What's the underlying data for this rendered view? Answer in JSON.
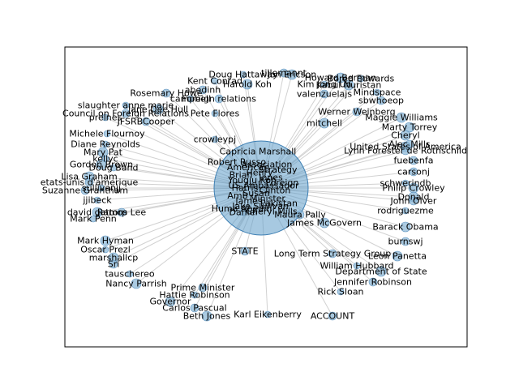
{
  "figure": {
    "hub": {
      "label": "Capricia Marshall"
    },
    "hub_stack_labels": [
      "Robert Russo",
      "Association",
      "American",
      "Strategy",
      "Henry",
      "Brian",
      "Jones",
      "Yougju Koh",
      "Foreign",
      "US Ambassador",
      "Harris",
      "Clinton",
      "Susan",
      "Amb",
      "Minister",
      "James",
      "Pakistan",
      "Jake Sullivan",
      "Huma Abedin",
      "Cheryl Mills"
    ],
    "nodes": [
      "Doug Hattaway",
      "tillemannt",
      "Howard Berman",
      "Kent Conrad",
      "abedinh",
      "Harold Koh",
      "campbell",
      "Foreign relations",
      "Jane Dee Hull",
      "Pete Flores",
      "Rosemary Howe",
      "Jon Ericson",
      "Bored Edwards",
      "valenzuelajs",
      "Kabul Nuristan",
      "Kim Jong Un",
      "Werner Weinberg",
      "mitchell",
      "Mindspace",
      "sbwhoeop",
      "Maggie Williams",
      "slaughter anne marie",
      "Council on Foreign Relations",
      "Marty Torrey",
      "preines",
      "JFSRBCooper",
      "Cheryl",
      "Michele Flournoy",
      "Alec Mills",
      "United States of America",
      "Diane Reynolds",
      "Lynn Forester de Rothschild",
      "Mary Pat",
      "kellyc",
      "fuebenfa",
      "Gordon Brown",
      "Doug Band",
      "carsonj",
      "Lisa Graham",
      "schwerindb",
      "etats-unis d'amerique",
      "Philip Crowley",
      "sullivanjj",
      "Suzanne Grantham",
      "Donald",
      "jjibeck",
      "John Olver",
      "david gattorp",
      "rodriguezme",
      "Ramos Lee",
      "Barack Obama",
      "Mark Penn",
      "burnswj",
      "Mark Hyman",
      "Oscar Prezl",
      "Long Term Strategy Group",
      "marshallcp",
      "William Hubbard",
      "Sri",
      "Department of State",
      "tauschereo",
      "Jennifer Robinson",
      "Nancy Parrish",
      "Rick Sloan",
      "Prime Minister",
      "Governor",
      "Hattie Robinson",
      "Carlos Pascual",
      "Beth Jones",
      "Karl Eikenberry",
      "ACCOUNT",
      "Leon Panetta",
      "Daniel",
      "Maura Pally",
      "James McGovern",
      "crowleypj",
      "STATE"
    ],
    "x_axis_ticks": [],
    "y_axis_ticks": []
  }
}
